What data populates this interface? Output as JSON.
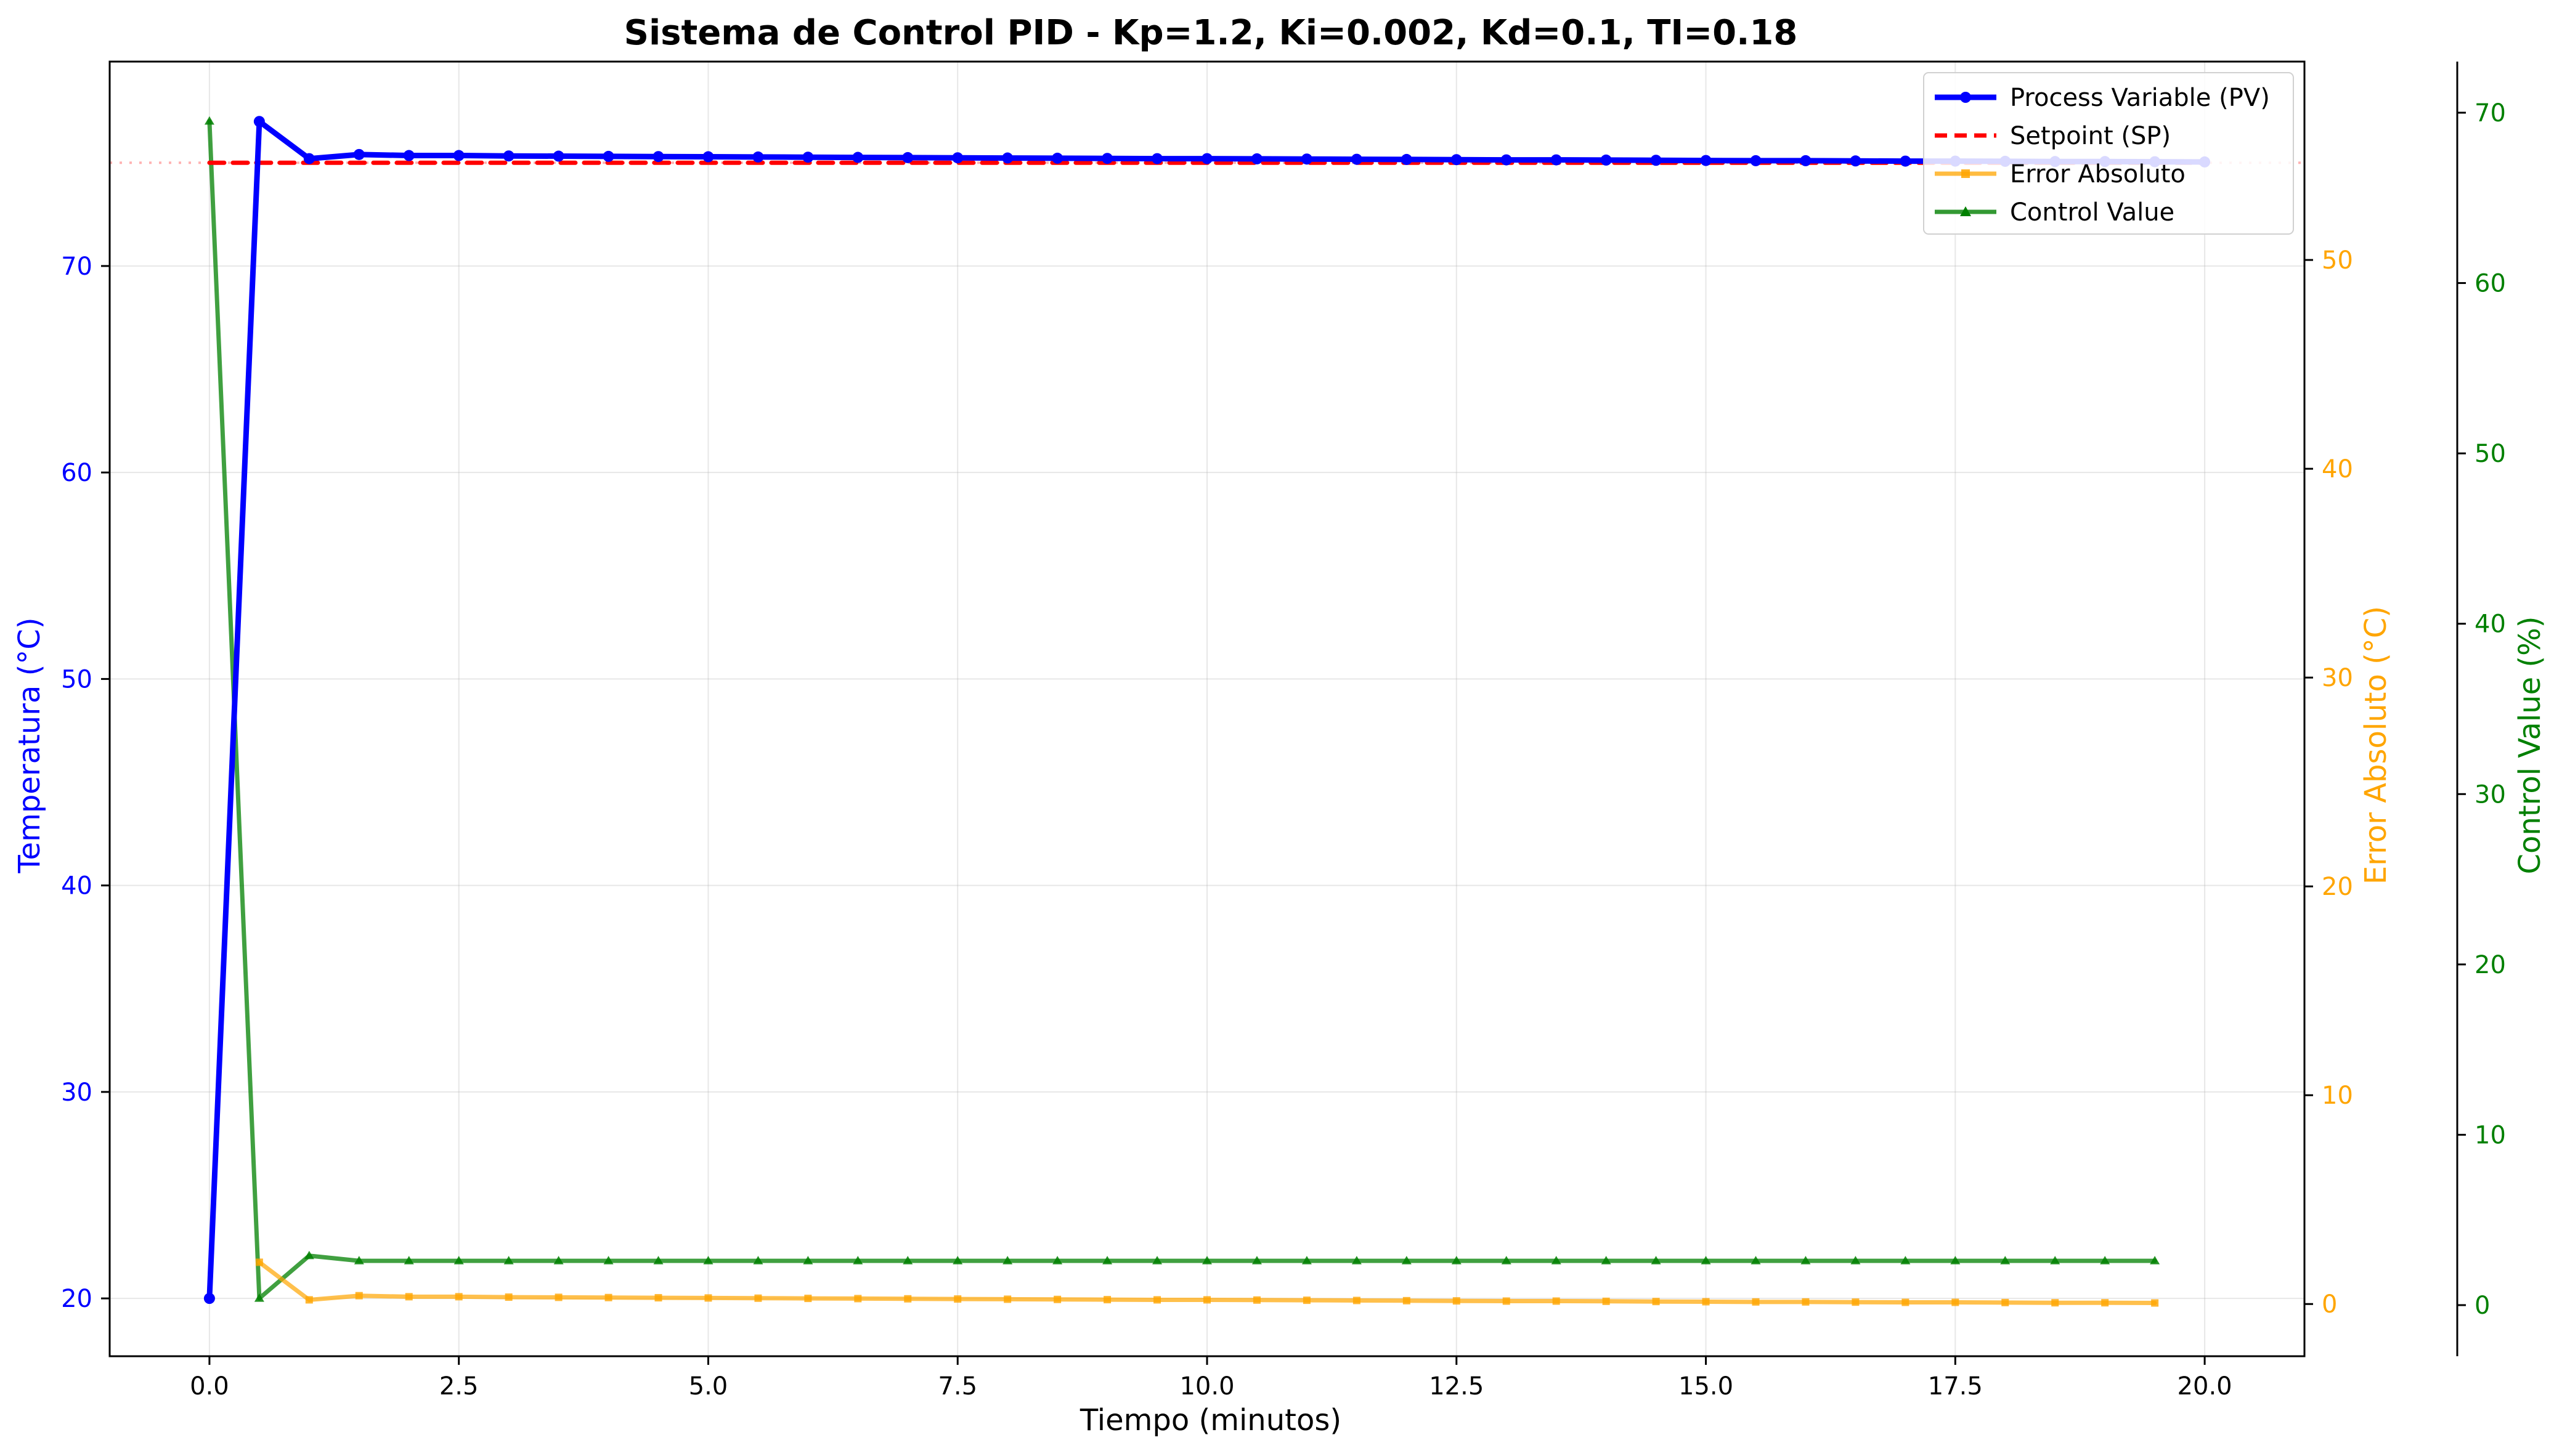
{
  "chart_data": {
    "type": "line",
    "title": "Sistema de Control PID - Kp=1.2, Ki=0.002, Kd=0.1, TI=0.18",
    "xlabel": "Tiempo (minutos)",
    "ylabel": "Temperatura (°C)",
    "y2label": "Error Absoluto (°C)",
    "y3label": "Control Value (%)",
    "xlim": [
      -1.0,
      21.0
    ],
    "ylim": [
      17.2,
      79.9
    ],
    "y2lim": [
      -2.5,
      59.5
    ],
    "y3lim": [
      -3.0,
      73.0
    ],
    "x_ticks": [
      "0.0",
      "2.5",
      "5.0",
      "7.5",
      "10.0",
      "12.5",
      "15.0",
      "17.5",
      "20.0"
    ],
    "y_ticks": [
      "20",
      "30",
      "40",
      "50",
      "60",
      "70"
    ],
    "y2_ticks": [
      "0",
      "10",
      "20",
      "30",
      "40",
      "50"
    ],
    "y3_ticks": [
      "0",
      "10",
      "20",
      "30",
      "40",
      "50",
      "60",
      "70"
    ],
    "grid": true,
    "legend_position": "top-right",
    "legend": [
      "Process Variable (PV)",
      "Setpoint (SP)",
      "Error Absoluto",
      "Control Value"
    ],
    "colors": {
      "pv": "#0000ff",
      "sp": "#ff0000",
      "error": "#ffa500",
      "control": "#008000"
    },
    "series": [
      {
        "name": "Process Variable (PV)",
        "axis": "left",
        "x": [
          0.0,
          0.5,
          1.0,
          1.5,
          2.0,
          2.5,
          3.0,
          3.5,
          4.0,
          4.5,
          5.0,
          5.5,
          6.0,
          6.5,
          7.0,
          7.5,
          8.0,
          8.5,
          9.0,
          9.5,
          10.0,
          10.5,
          11.0,
          11.5,
          12.0,
          12.5,
          13.0,
          13.5,
          14.0,
          14.5,
          15.0,
          15.5,
          16.0,
          16.5,
          17.0,
          17.5,
          18.0,
          18.5,
          19.0,
          19.5,
          20.0
        ],
        "values": [
          20.0,
          77.0,
          75.2,
          75.4,
          75.35,
          75.35,
          75.33,
          75.32,
          75.31,
          75.3,
          75.29,
          75.28,
          75.27,
          75.26,
          75.25,
          75.24,
          75.23,
          75.22,
          75.21,
          75.2,
          75.2,
          75.19,
          75.18,
          75.17,
          75.16,
          75.15,
          75.14,
          75.14,
          75.13,
          75.12,
          75.11,
          75.1,
          75.1,
          75.09,
          75.08,
          75.08,
          75.07,
          75.06,
          75.06,
          75.05,
          75.04
        ]
      },
      {
        "name": "Setpoint (SP)",
        "axis": "left",
        "x": [
          0.0,
          20.0
        ],
        "values": [
          75.0,
          75.0
        ]
      },
      {
        "name": "Error Absoluto",
        "axis": "right",
        "x": [
          0.5,
          1.0,
          1.5,
          2.0,
          2.5,
          3.0,
          3.5,
          4.0,
          4.5,
          5.0,
          5.5,
          6.0,
          6.5,
          7.0,
          7.5,
          8.0,
          8.5,
          9.0,
          9.5,
          10.0,
          10.5,
          11.0,
          11.5,
          12.0,
          12.5,
          13.0,
          13.5,
          14.0,
          14.5,
          15.0,
          15.5,
          16.0,
          16.5,
          17.0,
          17.5,
          18.0,
          18.5,
          19.0,
          19.5
        ],
        "values": [
          2.0,
          0.2,
          0.4,
          0.35,
          0.35,
          0.33,
          0.32,
          0.31,
          0.3,
          0.29,
          0.28,
          0.27,
          0.26,
          0.25,
          0.24,
          0.23,
          0.22,
          0.21,
          0.2,
          0.2,
          0.19,
          0.18,
          0.17,
          0.16,
          0.15,
          0.14,
          0.14,
          0.13,
          0.12,
          0.11,
          0.1,
          0.1,
          0.09,
          0.08,
          0.08,
          0.07,
          0.06,
          0.06,
          0.05
        ]
      },
      {
        "name": "Control Value",
        "axis": "right2",
        "x": [
          0.0,
          0.5,
          1.0,
          1.5,
          2.0,
          2.5,
          3.0,
          3.5,
          4.0,
          4.5,
          5.0,
          5.5,
          6.0,
          6.5,
          7.0,
          7.5,
          8.0,
          8.5,
          9.0,
          9.5,
          10.0,
          10.5,
          11.0,
          11.5,
          12.0,
          12.5,
          13.0,
          13.5,
          14.0,
          14.5,
          15.0,
          15.5,
          16.0,
          16.5,
          17.0,
          17.5,
          18.0,
          18.5,
          19.0,
          19.5
        ],
        "values": [
          69.5,
          0.4,
          2.9,
          2.6,
          2.6,
          2.6,
          2.6,
          2.6,
          2.6,
          2.6,
          2.6,
          2.6,
          2.6,
          2.6,
          2.6,
          2.6,
          2.6,
          2.6,
          2.6,
          2.6,
          2.6,
          2.6,
          2.6,
          2.6,
          2.6,
          2.6,
          2.6,
          2.6,
          2.6,
          2.6,
          2.6,
          2.6,
          2.6,
          2.6,
          2.6,
          2.6,
          2.6,
          2.6,
          2.6,
          2.6
        ]
      }
    ]
  }
}
